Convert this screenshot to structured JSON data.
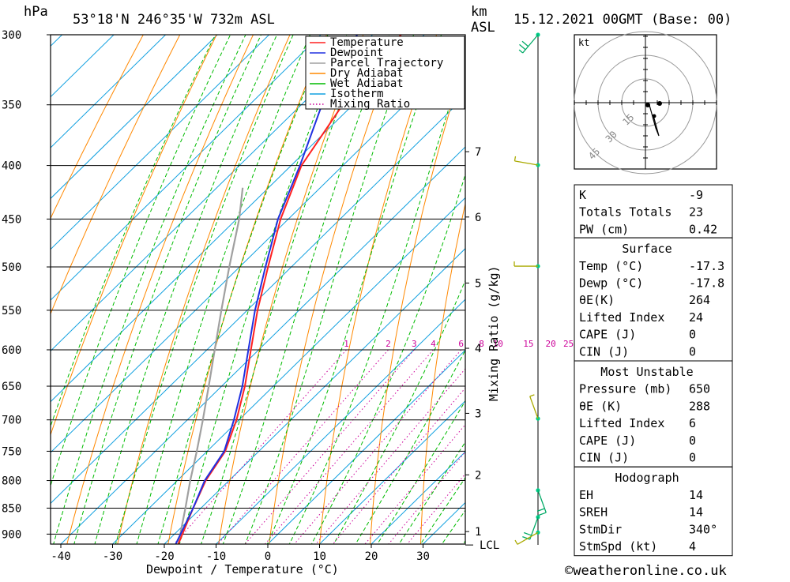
{
  "header": {
    "unit_pressure": "hPa",
    "location": "53°18'N  246°35'W  732m  ASL",
    "unit_height": "km",
    "unit_height2": "ASL",
    "datetime": "15.12.2021  00GMT  (Base: 00)"
  },
  "colors": {
    "temperature": "#ff2020",
    "dewpoint": "#2030e0",
    "parcel": "#a0a0a0",
    "dry_adiabat": "#ff8800",
    "wet_adiabat": "#00bb00",
    "isotherm": "#10a0e0",
    "mixing_ratio": "#cc0099"
  },
  "chart_data": {
    "type": "line",
    "subtype": "skew-T log-P",
    "xlabel": "Dewpoint / Temperature (°C)",
    "ylabel": "hPa",
    "ylabel_right": "Mixing Ratio (g/kg)",
    "x_ticks": [
      -40,
      -30,
      -20,
      -10,
      0,
      10,
      20,
      30
    ],
    "pressure_ticks": [
      300,
      350,
      400,
      450,
      500,
      550,
      600,
      650,
      700,
      750,
      800,
      850,
      900
    ],
    "pressure_range": [
      300,
      920
    ],
    "height_ticks": [
      {
        "km": "1",
        "p": 895
      },
      {
        "km": "2",
        "p": 790
      },
      {
        "km": "3",
        "p": 690
      },
      {
        "km": "4",
        "p": 598
      },
      {
        "km": "5",
        "p": 518
      },
      {
        "km": "6",
        "p": 448
      },
      {
        "km": "7",
        "p": 388
      }
    ],
    "lcl_label": "LCL",
    "lcl_pressure": 925,
    "mixing_ratio_labels": [
      "1",
      "2",
      "3",
      "4",
      "6",
      "8",
      "10",
      "15",
      "20",
      "25"
    ],
    "mixing_ratio_values": [
      1,
      2,
      3,
      4,
      6,
      8,
      10,
      15,
      20,
      25
    ],
    "mixing_ratio_label_pressure": 600,
    "legend": [
      "Temperature",
      "Dewpoint",
      "Parcel Trajectory",
      "Dry Adiabat",
      "Wet Adiabat",
      "Isotherm",
      "Mixing Ratio"
    ],
    "legend_position": "top-right",
    "temperature": [
      [
        920,
        -17.3
      ],
      [
        850,
        -21.5
      ],
      [
        800,
        -24.5
      ],
      [
        750,
        -26.5
      ],
      [
        700,
        -30.5
      ],
      [
        650,
        -35.5
      ],
      [
        600,
        -41.5
      ],
      [
        550,
        -48
      ],
      [
        500,
        -54.5
      ],
      [
        450,
        -61.5
      ],
      [
        400,
        -68
      ],
      [
        350,
        -72
      ],
      [
        300,
        -74.5
      ]
    ],
    "dewpoint": [
      [
        920,
        -17.8
      ],
      [
        850,
        -21.5
      ],
      [
        800,
        -24.7
      ],
      [
        750,
        -26.7
      ],
      [
        700,
        -31
      ],
      [
        650,
        -36
      ],
      [
        600,
        -42
      ],
      [
        550,
        -48.5
      ],
      [
        500,
        -55
      ],
      [
        450,
        -62
      ],
      [
        400,
        -68.3
      ],
      [
        350,
        -76
      ],
      [
        300,
        -83
      ]
    ],
    "parcel": [
      [
        920,
        -17.3
      ],
      [
        850,
        -23
      ],
      [
        800,
        -27.5
      ],
      [
        750,
        -32
      ],
      [
        700,
        -37
      ],
      [
        650,
        -42.5
      ],
      [
        600,
        -48.5
      ],
      [
        550,
        -55
      ],
      [
        500,
        -62
      ],
      [
        450,
        -69.5
      ],
      [
        420,
        -75
      ]
    ],
    "wind_barbs": [
      {
        "p": 300,
        "dir": 220,
        "kt": 15
      },
      {
        "p": 400,
        "dir": 280,
        "kt": 5
      },
      {
        "p": 500,
        "dir": 270,
        "kt": 5
      },
      {
        "p": 700,
        "dir": 340,
        "kt": 5
      },
      {
        "p": 820,
        "dir": 160,
        "kt": 10
      },
      {
        "p": 870,
        "dir": 200,
        "kt": 10
      },
      {
        "p": 900,
        "dir": 240,
        "kt": 5
      }
    ]
  },
  "hodograph": {
    "unit": "kt",
    "rings": [
      "15",
      "30",
      "45"
    ]
  },
  "indices": [
    {
      "label": "K",
      "value": "-9"
    },
    {
      "label": "Totals Totals",
      "value": "23"
    },
    {
      "label": "PW (cm)",
      "value": "0.42"
    }
  ],
  "surface": {
    "title": "Surface",
    "rows": [
      {
        "label": "Temp (°C)",
        "value": "-17.3"
      },
      {
        "label": "Dewp (°C)",
        "value": "-17.8"
      },
      {
        "label": "θE(K)",
        "value": "264"
      },
      {
        "label": "Lifted Index",
        "value": "24"
      },
      {
        "label": "CAPE (J)",
        "value": "0"
      },
      {
        "label": "CIN (J)",
        "value": "0"
      }
    ]
  },
  "most_unstable": {
    "title": "Most Unstable",
    "rows": [
      {
        "label": "Pressure (mb)",
        "value": "650"
      },
      {
        "label": "θE (K)",
        "value": "288"
      },
      {
        "label": "Lifted Index",
        "value": "6"
      },
      {
        "label": "CAPE (J)",
        "value": "0"
      },
      {
        "label": "CIN (J)",
        "value": "0"
      }
    ]
  },
  "hodograph_table": {
    "title": "Hodograph",
    "rows": [
      {
        "label": "EH",
        "value": "14"
      },
      {
        "label": "SREH",
        "value": "14"
      },
      {
        "label": "StmDir",
        "value": "340°"
      },
      {
        "label": "StmSpd (kt)",
        "value": "4"
      }
    ]
  },
  "footer": {
    "copyright_symbol": "©",
    "site": "weatheronline.co.uk"
  }
}
